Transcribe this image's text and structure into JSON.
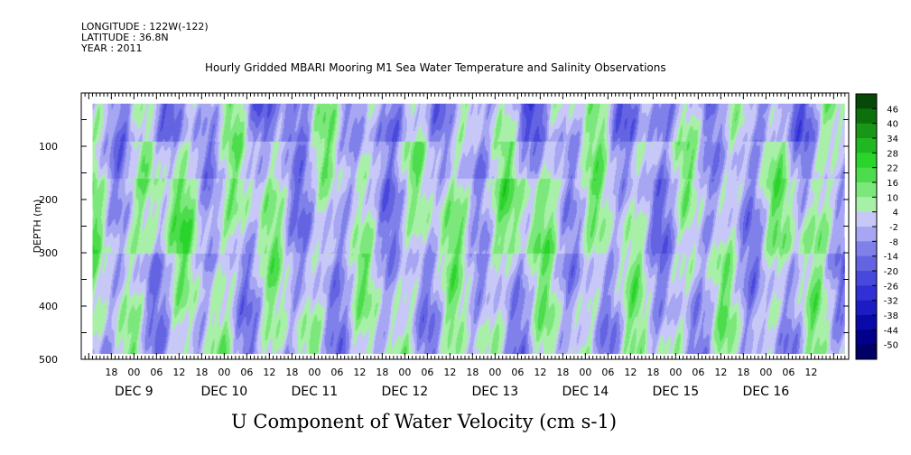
{
  "header": {
    "longitude": "LONGITUDE : 122W(-122)",
    "latitude": "LATITUDE : 36.8N",
    "year": "YEAR : 2011"
  },
  "chart_data": {
    "type": "heatmap",
    "title": "Hourly Gridded MBARI Mooring M1 Sea Water Temperature and Salinity Observations",
    "xlabel": "U Component of Water Velocity (cm s-1)",
    "ylabel": "DEPTH (m)",
    "y_axis": {
      "range": [
        0,
        500
      ],
      "inverted": true,
      "ticks": [
        {
          "value": 100,
          "label": "100"
        },
        {
          "value": 200,
          "label": "200"
        },
        {
          "value": 300,
          "label": "300"
        },
        {
          "value": 400,
          "label": "400"
        },
        {
          "value": 500,
          "label": "500"
        }
      ],
      "data_depth_range": [
        20,
        490
      ]
    },
    "x_axis": {
      "units": "hours since DEC 9 00:00",
      "range": [
        -14,
        190
      ],
      "data_range": [
        -11,
        189
      ],
      "hour_labels": [
        {
          "h": -6,
          "label": "18"
        },
        {
          "h": 0,
          "label": "00"
        },
        {
          "h": 6,
          "label": "06"
        },
        {
          "h": 12,
          "label": "12"
        },
        {
          "h": 18,
          "label": "18"
        },
        {
          "h": 24,
          "label": "00"
        },
        {
          "h": 30,
          "label": "06"
        },
        {
          "h": 36,
          "label": "12"
        },
        {
          "h": 42,
          "label": "18"
        },
        {
          "h": 48,
          "label": "00"
        },
        {
          "h": 54,
          "label": "06"
        },
        {
          "h": 60,
          "label": "12"
        },
        {
          "h": 66,
          "label": "18"
        },
        {
          "h": 72,
          "label": "00"
        },
        {
          "h": 78,
          "label": "06"
        },
        {
          "h": 84,
          "label": "12"
        },
        {
          "h": 90,
          "label": "18"
        },
        {
          "h": 96,
          "label": "00"
        },
        {
          "h": 102,
          "label": "06"
        },
        {
          "h": 108,
          "label": "12"
        },
        {
          "h": 114,
          "label": "18"
        },
        {
          "h": 120,
          "label": "00"
        },
        {
          "h": 126,
          "label": "06"
        },
        {
          "h": 132,
          "label": "12"
        },
        {
          "h": 138,
          "label": "18"
        },
        {
          "h": 144,
          "label": "00"
        },
        {
          "h": 150,
          "label": "06"
        },
        {
          "h": 156,
          "label": "12"
        },
        {
          "h": 162,
          "label": "18"
        },
        {
          "h": 168,
          "label": "00"
        },
        {
          "h": 174,
          "label": "06"
        },
        {
          "h": 180,
          "label": "12"
        }
      ],
      "day_labels": [
        {
          "h": 0,
          "label": "DEC  9"
        },
        {
          "h": 24,
          "label": "DEC 10"
        },
        {
          "h": 48,
          "label": "DEC 11"
        },
        {
          "h": 72,
          "label": "DEC 12"
        },
        {
          "h": 96,
          "label": "DEC 13"
        },
        {
          "h": 120,
          "label": "DEC 14"
        },
        {
          "h": 144,
          "label": "DEC 15"
        },
        {
          "h": 168,
          "label": "DEC 16"
        }
      ]
    },
    "colorbar": {
      "levels": [
        -50,
        -44,
        -38,
        -32,
        -26,
        -20,
        -14,
        -8,
        -2,
        4,
        10,
        16,
        22,
        28,
        34,
        40,
        46
      ],
      "labels": [
        "46",
        "40",
        "34",
        "28",
        "22",
        "16",
        "10",
        "4",
        "-2",
        "-8",
        "-14",
        "-20",
        "-26",
        "-32",
        "-38",
        "-44",
        "-50"
      ],
      "colors": [
        "#000066",
        "#00008a",
        "#0a0aa8",
        "#1c1cc4",
        "#3030d6",
        "#4848dc",
        "#6464e2",
        "#8080ea",
        "#a6a6f2",
        "#c8c8f8",
        "#a8f0a8",
        "#7ce87c",
        "#4cdc4c",
        "#2ad42a",
        "#20b820",
        "#189618",
        "#0c700c",
        "#064806"
      ]
    },
    "field_description_range_cm_s": [
      -30,
      30
    ]
  }
}
